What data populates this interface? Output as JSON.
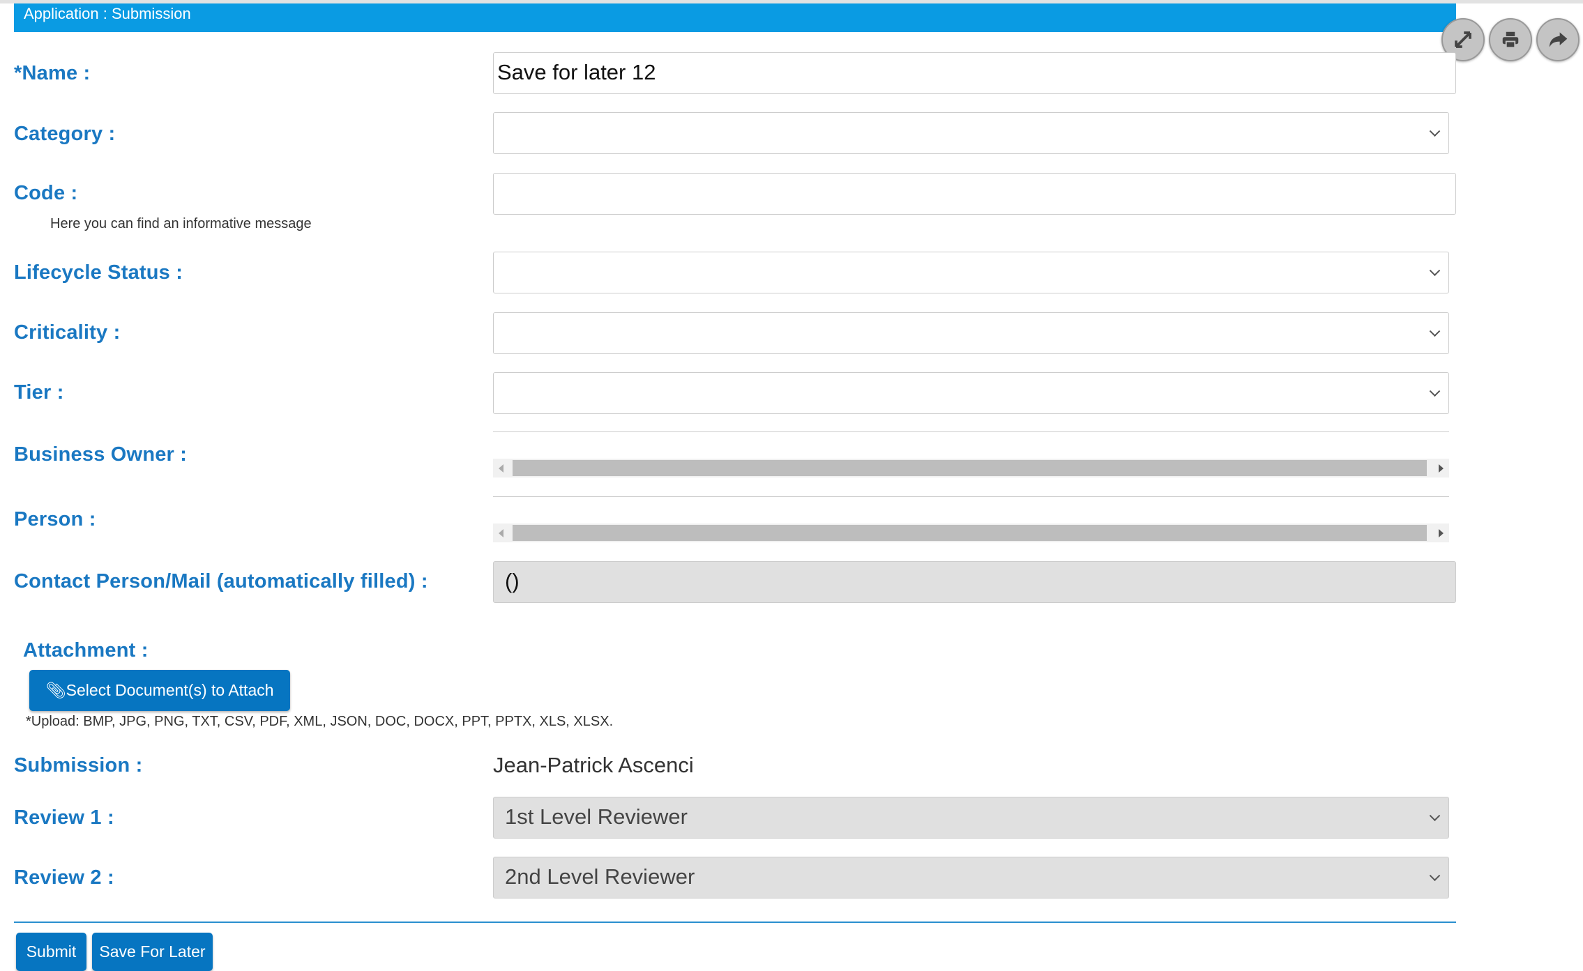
{
  "header": {
    "title": "Application : Submission"
  },
  "toolbar": {
    "icons": [
      "expand-icon",
      "print-icon",
      "share-icon"
    ]
  },
  "form": {
    "name": {
      "label": "*Name :",
      "value": "Save for later 12"
    },
    "category": {
      "label": "Category :",
      "value": ""
    },
    "code": {
      "label": "Code :",
      "value": "",
      "help": "Here you can find an informative message"
    },
    "lifecycle": {
      "label": "Lifecycle Status :",
      "value": ""
    },
    "criticality": {
      "label": "Criticality :",
      "value": ""
    },
    "tier": {
      "label": "Tier :",
      "value": ""
    },
    "business_owner": {
      "label": "Business Owner :"
    },
    "person": {
      "label": "Person :"
    },
    "contact": {
      "label": "Contact Person/Mail (automatically filled) :",
      "value": "()"
    },
    "attachment": {
      "label": "Attachment :",
      "button": "Select Document(s) to Attach",
      "note": "*Upload: BMP, JPG, PNG, TXT, CSV, PDF, XML, JSON, DOC, DOCX, PPT, PPTX, XLS, XLSX."
    },
    "submission": {
      "label": "Submission :",
      "value": "Jean-Patrick Ascenci"
    },
    "review1": {
      "label": "Review 1 :",
      "value": "1st Level Reviewer"
    },
    "review2": {
      "label": "Review 2 :",
      "value": "2nd Level Reviewer"
    }
  },
  "actions": {
    "submit": "Submit",
    "save_later": "Save For Later"
  },
  "colors": {
    "header": "#0a9be3",
    "label": "#1a78c2",
    "button": "#0675c1"
  }
}
